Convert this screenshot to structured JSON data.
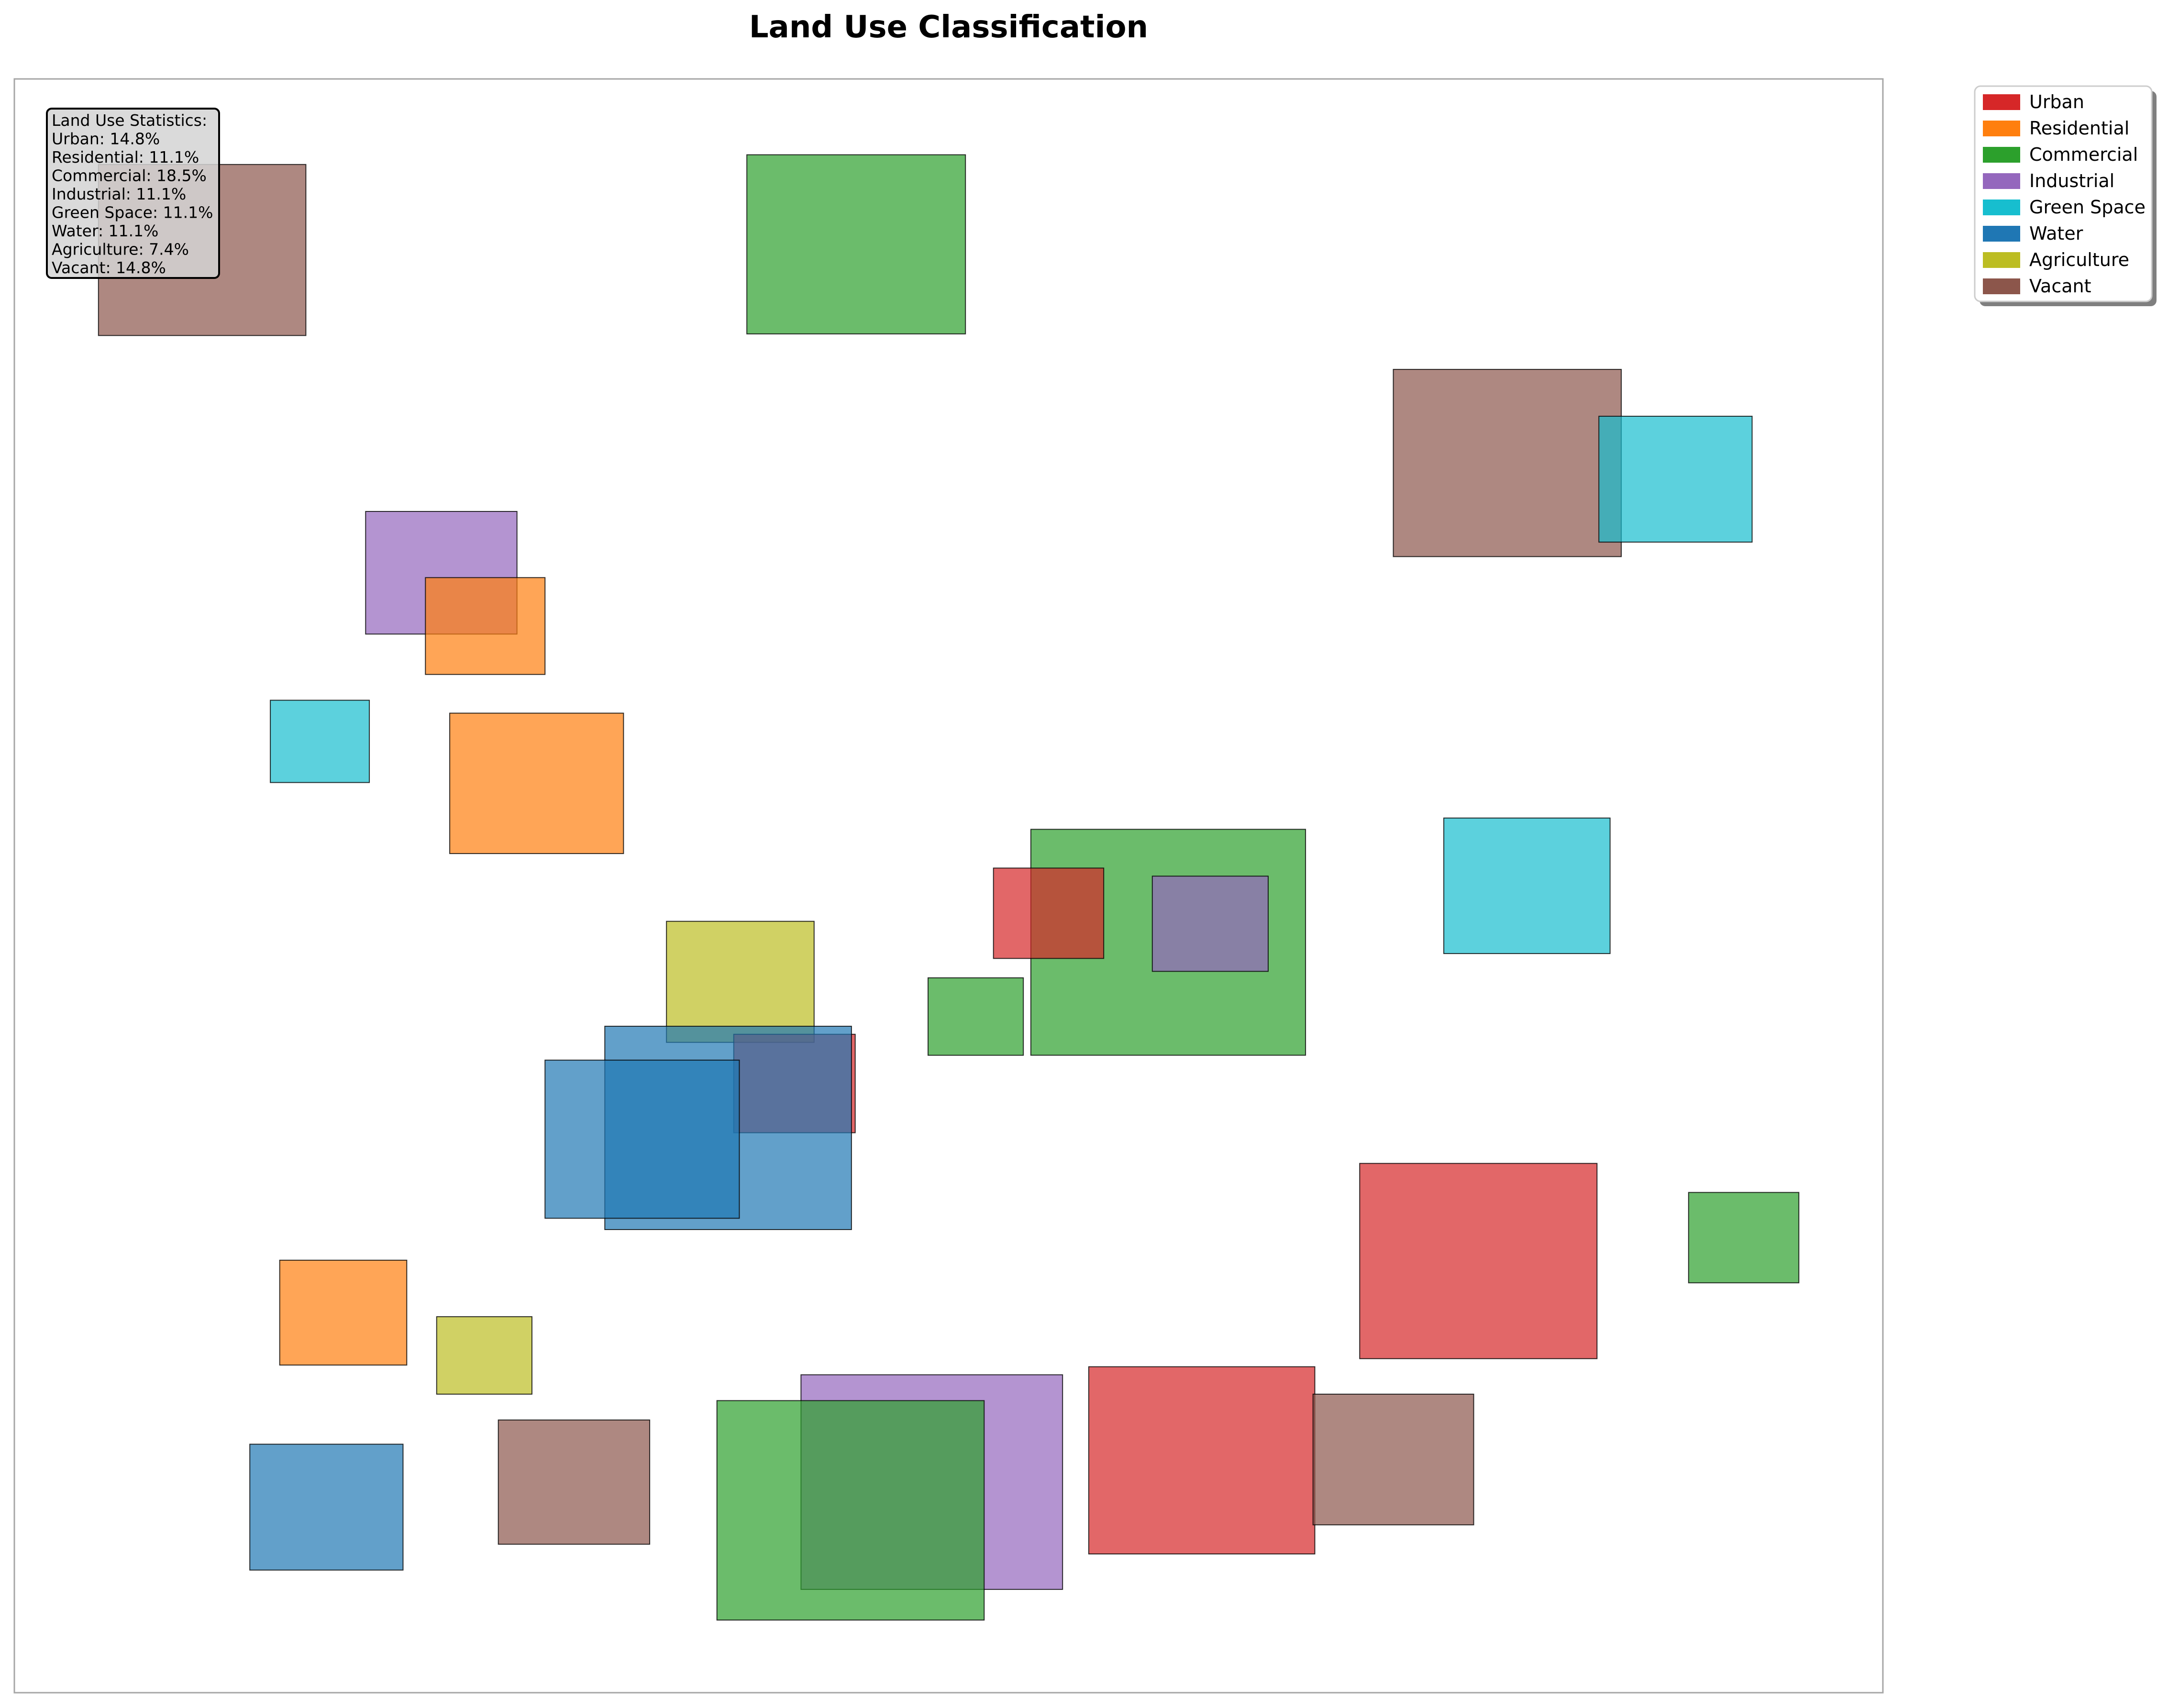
{
  "chart_data": {
    "type": "rectangles",
    "title": "Land Use Classification",
    "xlabel": "",
    "ylabel": "",
    "xlim": [
      0,
      100
    ],
    "ylim": [
      0,
      100
    ],
    "axes_visible": false,
    "grid": false,
    "legend_placement": "outside-top-right",
    "stats_box_placement": "top-left",
    "categories": [
      {
        "name": "Urban",
        "color": "#d62728"
      },
      {
        "name": "Residential",
        "color": "#ff7f0e"
      },
      {
        "name": "Commercial",
        "color": "#2ca02c"
      },
      {
        "name": "Industrial",
        "color": "#9467bd"
      },
      {
        "name": "Green Space",
        "color": "#17becf"
      },
      {
        "name": "Water",
        "color": "#1f77b4"
      },
      {
        "name": "Agriculture",
        "color": "#bcbd22"
      },
      {
        "name": "Vacant",
        "color": "#8c564b"
      }
    ],
    "stats": {
      "heading": "Land Use Statistics:",
      "lines": [
        "Urban: 14.8%",
        "Residential: 11.1%",
        "Commercial: 18.5%",
        "Industrial: 11.1%",
        "Green Space: 11.1%",
        "Water: 11.1%",
        "Agriculture: 7.4%",
        "Vacant: 14.8%"
      ]
    },
    "patches": [
      {
        "category": "Vacant",
        "x": 4.5,
        "y": 84.1,
        "w": 11.1,
        "h": 10.6
      },
      {
        "category": "Commercial",
        "x": 39.2,
        "y": 84.2,
        "w": 11.7,
        "h": 11.1
      },
      {
        "category": "Vacant",
        "x": 73.8,
        "y": 70.4,
        "w": 12.2,
        "h": 11.6
      },
      {
        "category": "Green Space",
        "x": 84.8,
        "y": 71.3,
        "w": 8.2,
        "h": 7.8
      },
      {
        "category": "Industrial",
        "x": 18.8,
        "y": 65.6,
        "w": 8.1,
        "h": 7.6
      },
      {
        "category": "Residential",
        "x": 22.0,
        "y": 63.1,
        "w": 6.4,
        "h": 6.0
      },
      {
        "category": "Green Space",
        "x": 13.7,
        "y": 56.4,
        "w": 5.3,
        "h": 5.1
      },
      {
        "category": "Residential",
        "x": 23.3,
        "y": 52.0,
        "w": 9.3,
        "h": 8.7
      },
      {
        "category": "Commercial",
        "x": 54.4,
        "y": 39.5,
        "w": 14.7,
        "h": 14.0
      },
      {
        "category": "Green Space",
        "x": 76.5,
        "y": 45.8,
        "w": 8.9,
        "h": 8.4
      },
      {
        "category": "Urban",
        "x": 52.4,
        "y": 45.5,
        "w": 5.9,
        "h": 5.6
      },
      {
        "category": "Industrial",
        "x": 60.9,
        "y": 44.7,
        "w": 6.2,
        "h": 5.9
      },
      {
        "category": "Agriculture",
        "x": 34.9,
        "y": 40.3,
        "w": 7.9,
        "h": 7.5
      },
      {
        "category": "Commercial",
        "x": 48.9,
        "y": 39.5,
        "w": 5.1,
        "h": 4.8
      },
      {
        "category": "Urban",
        "x": 38.5,
        "y": 34.7,
        "w": 6.5,
        "h": 6.1
      },
      {
        "category": "Water",
        "x": 31.6,
        "y": 28.7,
        "w": 13.2,
        "h": 12.6
      },
      {
        "category": "Water",
        "x": 28.4,
        "y": 29.4,
        "w": 10.4,
        "h": 9.8
      },
      {
        "category": "Urban",
        "x": 72.0,
        "y": 20.7,
        "w": 12.7,
        "h": 12.1
      },
      {
        "category": "Commercial",
        "x": 89.6,
        "y": 25.4,
        "w": 5.9,
        "h": 5.6
      },
      {
        "category": "Residential",
        "x": 14.2,
        "y": 20.3,
        "w": 6.8,
        "h": 6.5
      },
      {
        "category": "Agriculture",
        "x": 22.6,
        "y": 18.5,
        "w": 5.1,
        "h": 4.8
      },
      {
        "category": "Industrial",
        "x": 42.1,
        "y": 6.4,
        "w": 14.0,
        "h": 13.3
      },
      {
        "category": "Commercial",
        "x": 37.6,
        "y": 4.5,
        "w": 14.3,
        "h": 13.6
      },
      {
        "category": "Urban",
        "x": 57.5,
        "y": 8.6,
        "w": 12.1,
        "h": 11.6
      },
      {
        "category": "Vacant",
        "x": 69.5,
        "y": 10.4,
        "w": 8.6,
        "h": 8.1
      },
      {
        "category": "Water",
        "x": 12.6,
        "y": 7.6,
        "w": 8.2,
        "h": 7.8
      },
      {
        "category": "Vacant",
        "x": 25.9,
        "y": 9.2,
        "w": 8.1,
        "h": 7.7
      }
    ]
  }
}
